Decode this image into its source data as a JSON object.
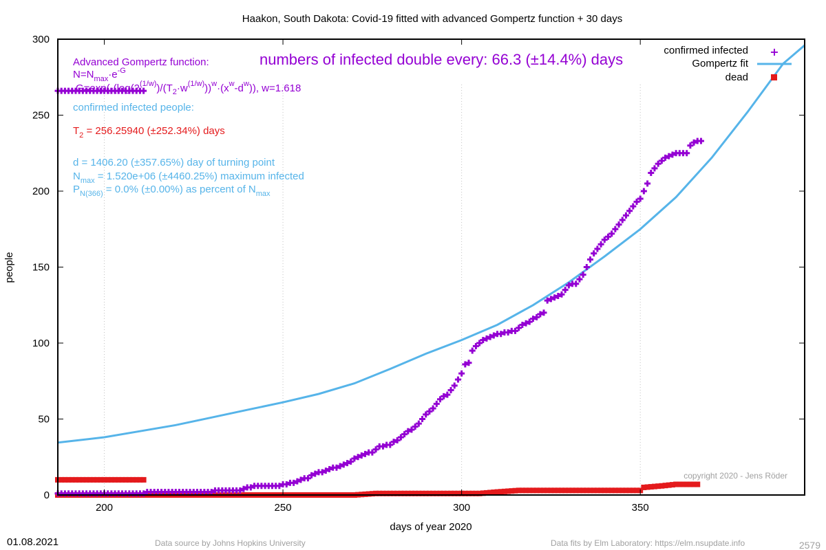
{
  "chart_data": {
    "type": "scatter",
    "title": "Haakon,  South Dakota: Covid-19 fitted with advanced Gompertz function + 30 days",
    "xlabel": "days of year 2020",
    "ylabel": "people",
    "xlim": [
      187,
      396
    ],
    "ylim": [
      0,
      300
    ],
    "x_ticks": [
      200,
      250,
      300,
      350
    ],
    "y_ticks": [
      0,
      50,
      100,
      150,
      200,
      250,
      300
    ],
    "grid": "partial dotted vertical",
    "legend_position": "top-right",
    "colors": {
      "infected": "#9400d3",
      "fit": "#56b4e9",
      "dead": "#e41a1c",
      "axis": "#000000"
    },
    "legend": [
      {
        "label": "confirmed infected",
        "key": "infected"
      },
      {
        "label": "Gompertz fit",
        "key": "fit"
      },
      {
        "label": "dead",
        "key": "dead"
      }
    ],
    "series": [
      {
        "name": "confirmed infected",
        "points": [
          [
            187,
            1
          ],
          [
            200,
            1
          ],
          [
            210,
            1
          ],
          [
            213,
            2
          ],
          [
            220,
            2
          ],
          [
            225,
            2
          ],
          [
            230,
            2
          ],
          [
            232,
            3
          ],
          [
            235,
            3
          ],
          [
            238,
            3
          ],
          [
            240,
            5
          ],
          [
            243,
            6
          ],
          [
            246,
            6
          ],
          [
            249,
            6
          ],
          [
            251,
            7
          ],
          [
            253,
            8
          ],
          [
            255,
            10
          ],
          [
            257,
            11
          ],
          [
            259,
            14
          ],
          [
            261,
            15
          ],
          [
            263,
            17
          ],
          [
            265,
            18
          ],
          [
            267,
            20
          ],
          [
            269,
            22
          ],
          [
            271,
            25
          ],
          [
            273,
            27
          ],
          [
            275,
            28
          ],
          [
            277,
            32
          ],
          [
            280,
            33
          ],
          [
            282,
            36
          ],
          [
            284,
            40
          ],
          [
            286,
            43
          ],
          [
            288,
            47
          ],
          [
            290,
            53
          ],
          [
            292,
            57
          ],
          [
            294,
            63
          ],
          [
            296,
            66
          ],
          [
            298,
            72
          ],
          [
            300,
            80
          ],
          [
            301,
            86
          ],
          [
            302,
            87
          ],
          [
            303,
            95
          ],
          [
            305,
            100
          ],
          [
            307,
            103
          ],
          [
            309,
            105
          ],
          [
            311,
            106
          ],
          [
            313,
            107
          ],
          [
            315,
            108
          ],
          [
            317,
            112
          ],
          [
            319,
            114
          ],
          [
            321,
            117
          ],
          [
            323,
            120
          ],
          [
            324,
            128
          ],
          [
            326,
            130
          ],
          [
            328,
            132
          ],
          [
            330,
            138
          ],
          [
            332,
            139
          ],
          [
            334,
            145
          ],
          [
            336,
            155
          ],
          [
            338,
            162
          ],
          [
            340,
            168
          ],
          [
            342,
            172
          ],
          [
            344,
            178
          ],
          [
            346,
            184
          ],
          [
            348,
            190
          ],
          [
            350,
            195
          ],
          [
            351,
            200
          ],
          [
            352,
            205
          ],
          [
            353,
            212
          ],
          [
            355,
            218
          ],
          [
            357,
            222
          ],
          [
            359,
            224
          ],
          [
            361,
            225
          ],
          [
            363,
            225
          ],
          [
            364,
            230
          ],
          [
            366,
            233
          ],
          [
            367,
            233
          ]
        ]
      },
      {
        "name": "Gompertz fit",
        "x": [
          187,
          200,
          210,
          220,
          230,
          240,
          250,
          260,
          270,
          280,
          290,
          300,
          310,
          320,
          330,
          340,
          350,
          360,
          370,
          380,
          390,
          396
        ],
        "values": [
          34.5,
          38,
          42,
          46,
          51,
          56,
          61,
          66.5,
          73.5,
          83,
          93,
          102,
          112,
          125,
          140,
          157,
          175,
          196,
          222,
          252,
          284,
          296
        ]
      },
      {
        "name": "dead",
        "points": [
          [
            187,
            0
          ],
          [
            200,
            0
          ],
          [
            210,
            0
          ],
          [
            220,
            0
          ],
          [
            230,
            0
          ],
          [
            240,
            0
          ],
          [
            250,
            0
          ],
          [
            260,
            0
          ],
          [
            270,
            0
          ],
          [
            276,
            1
          ],
          [
            285,
            1
          ],
          [
            295,
            1
          ],
          [
            305,
            1
          ],
          [
            310,
            2
          ],
          [
            316,
            3
          ],
          [
            325,
            3
          ],
          [
            335,
            3
          ],
          [
            345,
            3
          ],
          [
            350,
            3
          ],
          [
            351,
            5
          ],
          [
            356,
            6
          ],
          [
            360,
            7
          ],
          [
            366,
            7
          ]
        ]
      },
      {
        "name": "initial values",
        "points": [
          [
            187,
            266
          ],
          [
            195,
            266
          ],
          [
            200,
            266
          ],
          [
            205,
            266
          ],
          [
            211,
            266
          ]
        ]
      },
      {
        "name": "initial dead",
        "points": [
          [
            187,
            10
          ],
          [
            195,
            10
          ],
          [
            200,
            10
          ],
          [
            205,
            10
          ],
          [
            211,
            10
          ]
        ]
      }
    ],
    "annotations": {
      "doubling": "numbers of infected double every: 66.3 (±14.4%) days",
      "gompertz_heading": "Advanced Gompertz function:",
      "formula_n_prefix": "N=N",
      "formula_n_sub": "max",
      "formula_n_mid": "·e",
      "formula_n_sup": "-G",
      "formula_g_a": "G=exp(-(log(2",
      "formula_g_sup1": "(1/w)",
      "formula_g_b": ")/(T",
      "formula_g_sub2": "2",
      "formula_g_c": "·w",
      "formula_g_sup2": "(1/w)",
      "formula_g_d": "))",
      "formula_g_sup3": "w",
      "formula_g_e": "·(x",
      "formula_g_sup4": "w",
      "formula_g_f": "-d",
      "formula_g_sup5": "w",
      "formula_g_g": ")), w=1.618",
      "confirmed_heading": "confirmed infected people:",
      "t2_prefix": "T",
      "t2_sub": "2",
      "t2_value": " = 256.25940 (±252.34%) days",
      "d_line": "d = 1406.20 (±357.65%) day of turning point",
      "nmax_prefix": "N",
      "nmax_sub": "max",
      "nmax_value": " = 1.520e+06 (±4460.25%) maximum infected",
      "p_prefix": "P",
      "p_sub": "N(366)",
      "p_value": " = 0.0% (±0.00%) as percent of N",
      "p_sub2": "max",
      "copyright": "copyright 2020 - Jens Röder"
    }
  },
  "footer": {
    "date": "01.08.2021",
    "source": "Data source by Johns Hopkins University",
    "fits": "Data fits by Elm Laboratory: https://elm.nsupdate.info",
    "id": "2579"
  }
}
